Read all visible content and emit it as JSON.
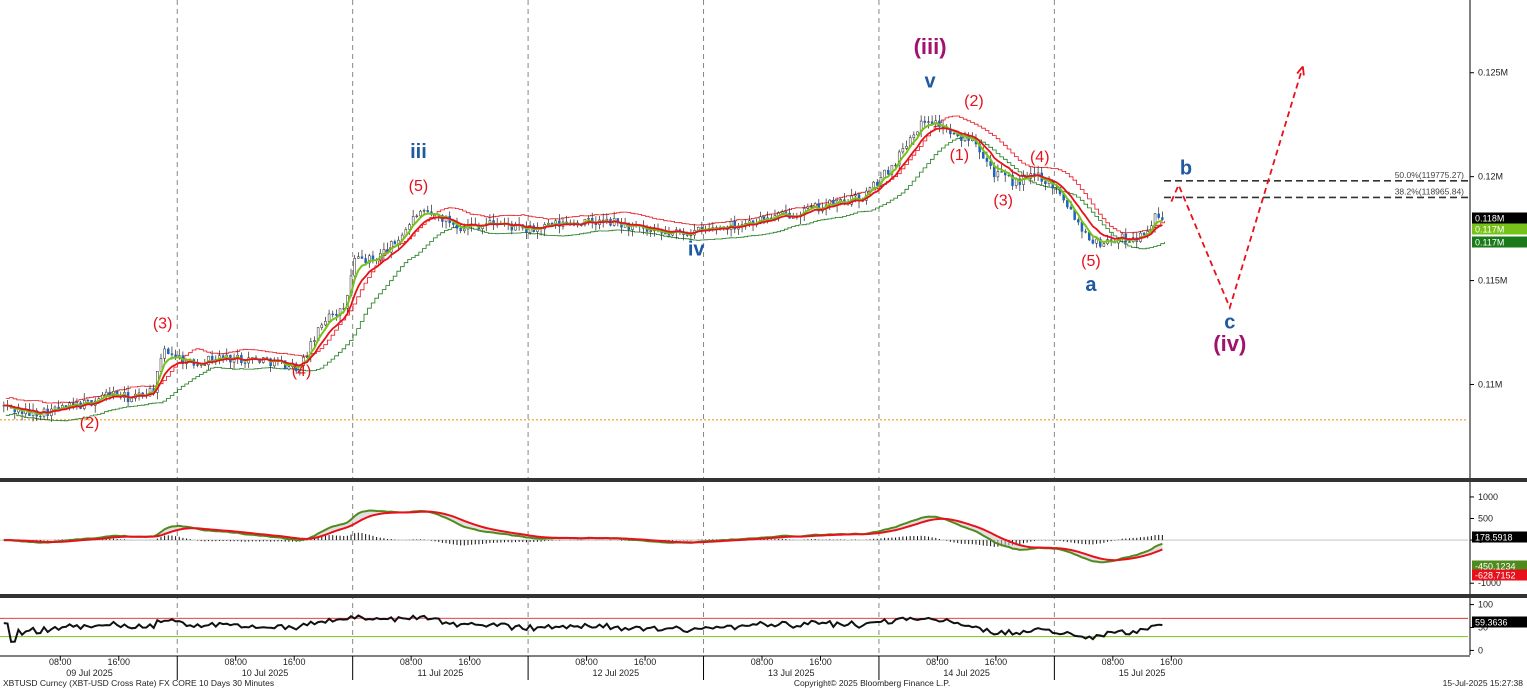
{
  "chart_data": [
    {
      "type": "candlestick",
      "panel": "price",
      "y_range": [
        0.1055,
        0.1285
      ],
      "y_ticks": [
        {
          "value": 0.125,
          "label": "0.125M"
        },
        {
          "value": 0.12,
          "label": "0.12M"
        },
        {
          "value": 0.115,
          "label": "0.115M"
        },
        {
          "value": 0.11,
          "label": "0.11M"
        }
      ],
      "day_separators": [
        "10 Jul 2025 00:00",
        "11 Jul 2025 00:00",
        "12 Jul 2025 00:00",
        "13 Jul 2025 00:00",
        "14 Jul 2025 00:00",
        "15 Jul 2025 00:00"
      ],
      "price_path": [
        {
          "t": "09 Jul 2025 00:00",
          "v": 0.109
        },
        {
          "t": "09 Jul 2025 04:00",
          "v": 0.1086
        },
        {
          "t": "09 Jul 2025 08:00",
          "v": 0.1088
        },
        {
          "t": "09 Jul 2025 12:00",
          "v": 0.1091
        },
        {
          "t": "09 Jul 2025 15:00",
          "v": 0.1096
        },
        {
          "t": "09 Jul 2025 18:00",
          "v": 0.1093
        },
        {
          "t": "09 Jul 2025 21:00",
          "v": 0.1098
        },
        {
          "t": "09 Jul 2025 22:30",
          "v": 0.1117
        },
        {
          "t": "10 Jul 2025 02:00",
          "v": 0.111
        },
        {
          "t": "10 Jul 2025 06:00",
          "v": 0.1113
        },
        {
          "t": "10 Jul 2025 12:00",
          "v": 0.1112
        },
        {
          "t": "10 Jul 2025 17:00",
          "v": 0.1108
        },
        {
          "t": "10 Jul 2025 19:00",
          "v": 0.1122
        },
        {
          "t": "10 Jul 2025 21:00",
          "v": 0.1135
        },
        {
          "t": "10 Jul 2025 23:00",
          "v": 0.1135
        },
        {
          "t": "11 Jul 2025 00:30",
          "v": 0.116
        },
        {
          "t": "11 Jul 2025 03:00",
          "v": 0.116
        },
        {
          "t": "11 Jul 2025 06:00",
          "v": 0.1168
        },
        {
          "t": "11 Jul 2025 09:00",
          "v": 0.1182
        },
        {
          "t": "11 Jul 2025 12:00",
          "v": 0.1181
        },
        {
          "t": "11 Jul 2025 15:00",
          "v": 0.1176
        },
        {
          "t": "11 Jul 2025 20:00",
          "v": 0.1178
        },
        {
          "t": "12 Jul 2025 00:00",
          "v": 0.1174
        },
        {
          "t": "12 Jul 2025 06:00",
          "v": 0.1178
        },
        {
          "t": "12 Jul 2025 12:00",
          "v": 0.1178
        },
        {
          "t": "12 Jul 2025 18:00",
          "v": 0.1172
        },
        {
          "t": "13 Jul 2025 00:00",
          "v": 0.1174
        },
        {
          "t": "13 Jul 2025 06:00",
          "v": 0.1178
        },
        {
          "t": "13 Jul 2025 12:00",
          "v": 0.1182
        },
        {
          "t": "13 Jul 2025 18:00",
          "v": 0.1187
        },
        {
          "t": "13 Jul 2025 22:00",
          "v": 0.119
        },
        {
          "t": "14 Jul 2025 02:00",
          "v": 0.1205
        },
        {
          "t": "14 Jul 2025 05:00",
          "v": 0.1222
        },
        {
          "t": "14 Jul 2025 07:00",
          "v": 0.1228
        },
        {
          "t": "14 Jul 2025 09:00",
          "v": 0.1224
        },
        {
          "t": "14 Jul 2025 11:00",
          "v": 0.1218
        },
        {
          "t": "14 Jul 2025 13:00",
          "v": 0.122
        },
        {
          "t": "14 Jul 2025 16:00",
          "v": 0.1202
        },
        {
          "t": "14 Jul 2025 19:00",
          "v": 0.1197
        },
        {
          "t": "14 Jul 2025 22:00",
          "v": 0.1201
        },
        {
          "t": "15 Jul 2025 01:00",
          "v": 0.1193
        },
        {
          "t": "15 Jul 2025 04:00",
          "v": 0.1175
        },
        {
          "t": "15 Jul 2025 06:00",
          "v": 0.1168
        },
        {
          "t": "15 Jul 2025 09:00",
          "v": 0.117
        },
        {
          "t": "15 Jul 2025 12:00",
          "v": 0.1171
        },
        {
          "t": "15 Jul 2025 14:00",
          "v": 0.118
        }
      ],
      "fib_levels": [
        {
          "label": "50.0%(119775.27)",
          "value": 0.1198
        },
        {
          "label": "38.2%(118965.84)",
          "value": 0.119
        }
      ],
      "dotted_support": 0.1083,
      "badges": [
        {
          "label": "0.118M",
          "value": 0.118,
          "bg": "#000000"
        },
        {
          "label": "0.117M",
          "value": 0.1174,
          "bg": "#77c219"
        },
        {
          "label": "0.117M",
          "value": 0.1169,
          "bg": "#1a7a1a"
        }
      ],
      "projection": [
        {
          "t": "15 Jul 2025 16:00",
          "v": 0.1188
        },
        {
          "t": "15 Jul 2025 17:00",
          "v": 0.1196
        },
        {
          "t": "16 Jul 2025 00:00",
          "v": 0.1137
        },
        {
          "t": "16 Jul 2025 10:00",
          "v": 0.1253
        }
      ],
      "wave_labels": [
        {
          "text": "(iii)",
          "color": "#a0126b",
          "size": 22,
          "t": "14 Jul 2025 07:00",
          "v": 0.1259
        },
        {
          "text": "v",
          "color": "#1f5aa0",
          "size": 20,
          "t": "14 Jul 2025 07:00",
          "v": 0.1243
        },
        {
          "text": "iii",
          "color": "#1f5aa0",
          "size": 20,
          "t": "11 Jul 2025 09:00",
          "v": 0.1209
        },
        {
          "text": "(5)",
          "color": "#e8101a",
          "size": 16,
          "t": "11 Jul 2025 09:00",
          "v": 0.1193
        },
        {
          "text": "iv",
          "color": "#1f5aa0",
          "size": 20,
          "t": "12 Jul 2025 23:00",
          "v": 0.1162
        },
        {
          "text": "(3)",
          "color": "#e8101a",
          "size": 16,
          "t": "09 Jul 2025 22:00",
          "v": 0.1127
        },
        {
          "text": "(4)",
          "color": "#e8101a",
          "size": 16,
          "t": "10 Jul 2025 17:00",
          "v": 0.1104
        },
        {
          "text": "(2)",
          "color": "#e8101a",
          "size": 16,
          "t": "09 Jul 2025 12:00",
          "v": 0.1079
        },
        {
          "text": "(2)",
          "color": "#e8101a",
          "size": 16,
          "t": "14 Jul 2025 13:00",
          "v": 0.1234
        },
        {
          "text": "(1)",
          "color": "#e8101a",
          "size": 16,
          "t": "14 Jul 2025 11:00",
          "v": 0.1208
        },
        {
          "text": "(4)",
          "color": "#e8101a",
          "size": 16,
          "t": "14 Jul 2025 22:00",
          "v": 0.1207
        },
        {
          "text": "(3)",
          "color": "#e8101a",
          "size": 16,
          "t": "14 Jul 2025 17:00",
          "v": 0.1186
        },
        {
          "text": "(5)",
          "color": "#e8101a",
          "size": 16,
          "t": "15 Jul 2025 05:00",
          "v": 0.1157
        },
        {
          "text": "a",
          "color": "#1f5aa0",
          "size": 20,
          "t": "15 Jul 2025 05:00",
          "v": 0.1145
        },
        {
          "text": "b",
          "color": "#1f5aa0",
          "size": 20,
          "t": "15 Jul 2025 18:00",
          "v": 0.1201
        },
        {
          "text": "c",
          "color": "#1f5aa0",
          "size": 20,
          "t": "16 Jul 2025 00:00",
          "v": 0.1127
        },
        {
          "text": "(iv)",
          "color": "#a0126b",
          "size": 22,
          "t": "16 Jul 2025 00:00",
          "v": 0.1116
        }
      ]
    },
    {
      "type": "line",
      "panel": "macd",
      "y_range": [
        -1250,
        1300
      ],
      "y_ticks": [
        {
          "value": 1000,
          "label": "1000"
        },
        {
          "value": 500,
          "label": "500"
        },
        {
          "value": 0,
          "label": "0"
        },
        {
          "value": -1000,
          "label": "-1000"
        }
      ],
      "badges": [
        {
          "label": "178.5918",
          "value": 179,
          "bg": "#000000"
        },
        {
          "label": "-450.1234",
          "value": -460,
          "bg": "#4f8a1c"
        },
        {
          "label": "-628.7152",
          "value": -640,
          "bg": "#e8101a"
        }
      ]
    },
    {
      "type": "line",
      "panel": "rsi",
      "y_range": [
        -10,
        110
      ],
      "y_ticks": [
        {
          "value": 100,
          "label": "100"
        },
        {
          "value": 50,
          "label": "50"
        },
        {
          "value": 0,
          "label": "0"
        }
      ],
      "levels": [
        70,
        30
      ],
      "badges": [
        {
          "label": "59.3636",
          "value": 59,
          "bg": "#000000"
        }
      ]
    }
  ],
  "x_axis": {
    "time_ticks": [
      {
        "t": "09 Jul 2025 08:00",
        "label": "08:00"
      },
      {
        "t": "09 Jul 2025 16:00",
        "label": "16:00"
      },
      {
        "t": "10 Jul 2025 08:00",
        "label": "08:00"
      },
      {
        "t": "10 Jul 2025 16:00",
        "label": "16:00"
      },
      {
        "t": "11 Jul 2025 08:00",
        "label": "08:00"
      },
      {
        "t": "11 Jul 2025 16:00",
        "label": "16:00"
      },
      {
        "t": "12 Jul 2025 08:00",
        "label": "08:00"
      },
      {
        "t": "12 Jul 2025 16:00",
        "label": "16:00"
      },
      {
        "t": "13 Jul 2025 08:00",
        "label": "08:00"
      },
      {
        "t": "13 Jul 2025 16:00",
        "label": "16:00"
      },
      {
        "t": "14 Jul 2025 08:00",
        "label": "08:00"
      },
      {
        "t": "14 Jul 2025 16:00",
        "label": "16:00"
      },
      {
        "t": "15 Jul 2025 08:00",
        "label": "08:00"
      },
      {
        "t": "15 Jul 2025 16:00",
        "label": "16:00"
      }
    ],
    "date_labels": [
      {
        "t": "09 Jul 2025 12:00",
        "label": "09 Jul 2025"
      },
      {
        "t": "10 Jul 2025 12:00",
        "label": "10 Jul 2025"
      },
      {
        "t": "11 Jul 2025 12:00",
        "label": "11 Jul 2025"
      },
      {
        "t": "12 Jul 2025 12:00",
        "label": "12 Jul 2025"
      },
      {
        "t": "13 Jul 2025 12:00",
        "label": "13 Jul 2025"
      },
      {
        "t": "14 Jul 2025 12:00",
        "label": "14 Jul 2025"
      },
      {
        "t": "15 Jul 2025 12:00",
        "label": "15 Jul 2025"
      }
    ]
  },
  "footer": {
    "left": "XBTUSD Curncy (XBT-USD Cross Rate) FX CORE 10 Days 30 Minutes",
    "center": "Copyright© 2025 Bloomberg Finance L.P.",
    "right": "15-Jul-2025 15:27:38"
  }
}
